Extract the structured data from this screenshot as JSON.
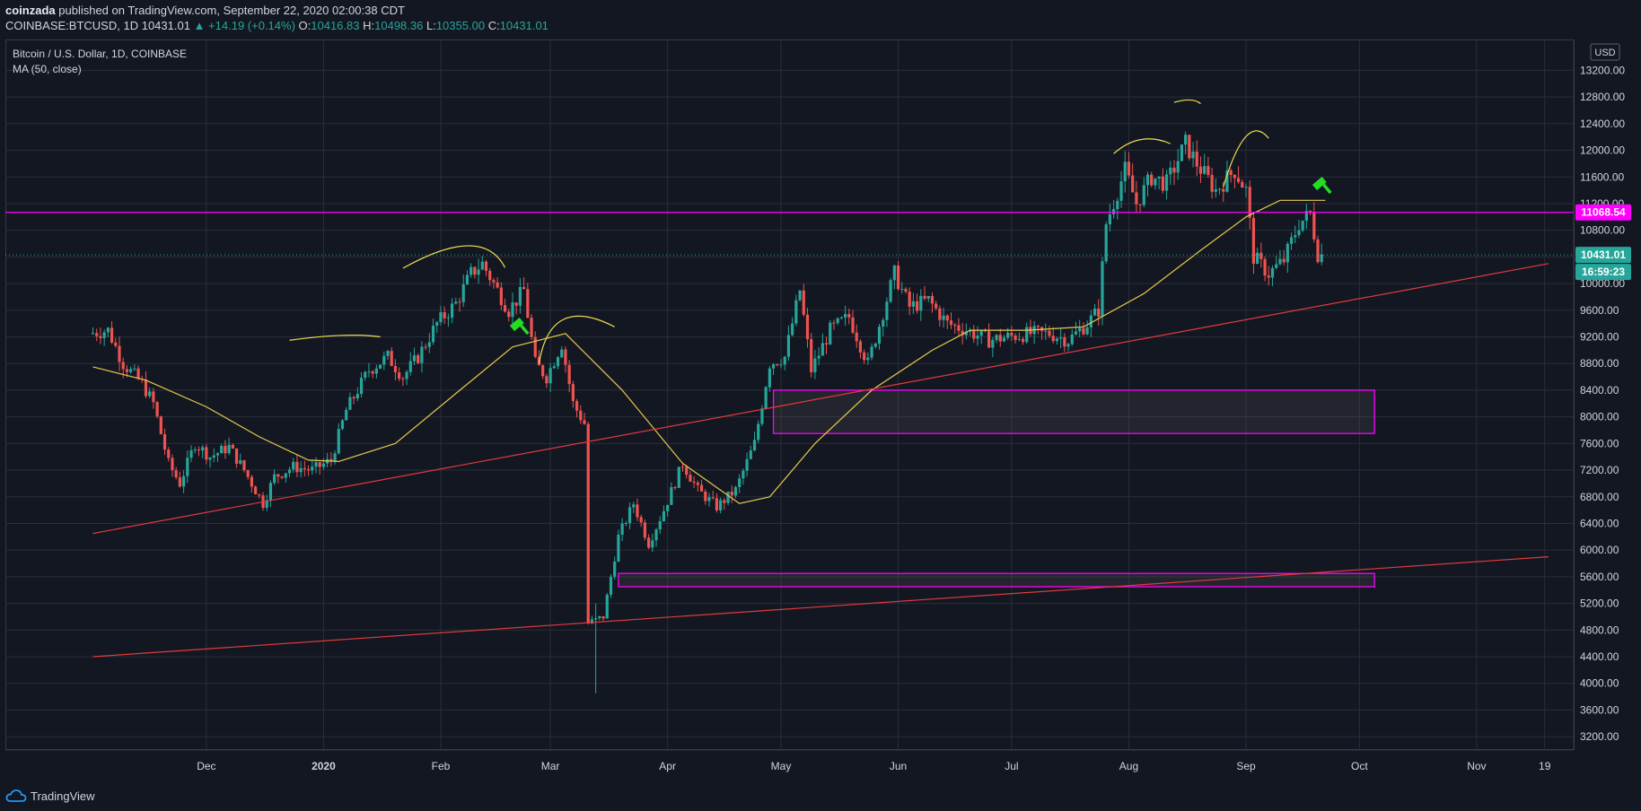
{
  "header": {
    "author": "coinzada",
    "published_text": "published on TradingView.com, September 22, 2020 02:00:38 CDT",
    "symbol": "COINBASE:BTCUSD, 1D",
    "last": "10431.01",
    "change": "▲ +14.19 (+0.14%)",
    "o_label": "O:",
    "o_value": "10416.83",
    "h_label": "H:",
    "h_value": "10498.36",
    "l_label": "L:",
    "l_value": "10355.00",
    "c_label": "C:",
    "c_value": "10431.01"
  },
  "legend": {
    "title": "Bitcoin / U.S. Dollar, 1D, COINBASE",
    "indicator": "MA (50, close)"
  },
  "currency_badge": "USD",
  "footer": {
    "brand": "TradingView"
  },
  "colors": {
    "background": "#131722",
    "grid": "#2a2e39",
    "up": "#26a69a",
    "down": "#ef5350",
    "ma": "#e6c84c",
    "resistance": "#ff00ff",
    "trendline": "#e03b3b",
    "annotation": "#f0e050",
    "marker": "#22dd22"
  },
  "chart_data": {
    "type": "candlestick",
    "symbol": "BTCUSD",
    "timeframe": "1D",
    "y_axis": {
      "ticks": [
        "3200.00",
        "3600.00",
        "4000.00",
        "4400.00",
        "4800.00",
        "5200.00",
        "5600.00",
        "6000.00",
        "6400.00",
        "6800.00",
        "7200.00",
        "7600.00",
        "8000.00",
        "8400.00",
        "8800.00",
        "9200.00",
        "9600.00",
        "10000.00",
        "10400.00",
        "10800.00",
        "11200.00",
        "11600.00",
        "12000.00",
        "12400.00",
        "12800.00",
        "13200.00"
      ],
      "range": [
        3000,
        13650
      ],
      "scale": "linear"
    },
    "x_axis": {
      "tick_labels": [
        "Dec",
        "2020",
        "Feb",
        "Mar",
        "Apr",
        "May",
        "Jun",
        "Jul",
        "Aug",
        "Sep",
        "Oct",
        "Nov",
        "19"
      ]
    },
    "price_labels": {
      "resistance": "11068.54",
      "last": "10431.01",
      "countdown": "16:59:23"
    },
    "resistance_level": 11068.54,
    "last_price": 10431.01,
    "close_series": [
      {
        "date": "2019-11-01",
        "close": 9250
      },
      {
        "date": "2019-11-06",
        "close": 9300
      },
      {
        "date": "2019-11-10",
        "close": 8800
      },
      {
        "date": "2019-11-15",
        "close": 8500
      },
      {
        "date": "2019-11-18",
        "close": 8200
      },
      {
        "date": "2019-11-22",
        "close": 7300
      },
      {
        "date": "2019-11-25",
        "close": 7000
      },
      {
        "date": "2019-11-29",
        "close": 7600
      },
      {
        "date": "2019-12-03",
        "close": 7400
      },
      {
        "date": "2019-12-08",
        "close": 7550
      },
      {
        "date": "2019-12-12",
        "close": 7200
      },
      {
        "date": "2019-12-17",
        "close": 6700
      },
      {
        "date": "2019-12-20",
        "close": 7100
      },
      {
        "date": "2019-12-25",
        "close": 7250
      },
      {
        "date": "2019-12-30",
        "close": 7200
      },
      {
        "date": "2020-01-04",
        "close": 7350
      },
      {
        "date": "2020-01-08",
        "close": 8100
      },
      {
        "date": "2020-01-14",
        "close": 8700
      },
      {
        "date": "2020-01-19",
        "close": 8900
      },
      {
        "date": "2020-01-23",
        "close": 8600
      },
      {
        "date": "2020-01-27",
        "close": 8900
      },
      {
        "date": "2020-02-01",
        "close": 9400
      },
      {
        "date": "2020-02-06",
        "close": 9700
      },
      {
        "date": "2020-02-10",
        "close": 10150
      },
      {
        "date": "2020-02-13",
        "close": 10300
      },
      {
        "date": "2020-02-17",
        "close": 9900
      },
      {
        "date": "2020-02-20",
        "close": 9600
      },
      {
        "date": "2020-02-24",
        "close": 9900
      },
      {
        "date": "2020-02-27",
        "close": 8800
      },
      {
        "date": "2020-03-01",
        "close": 8600
      },
      {
        "date": "2020-03-05",
        "close": 9100
      },
      {
        "date": "2020-03-08",
        "close": 8200
      },
      {
        "date": "2020-03-11",
        "close": 7900
      },
      {
        "date": "2020-03-12",
        "close": 4900
      },
      {
        "date": "2020-03-16",
        "close": 5000
      },
      {
        "date": "2020-03-20",
        "close": 6200
      },
      {
        "date": "2020-03-24",
        "close": 6700
      },
      {
        "date": "2020-03-28",
        "close": 6100
      },
      {
        "date": "2020-04-01",
        "close": 6600
      },
      {
        "date": "2020-04-06",
        "close": 7300
      },
      {
        "date": "2020-04-10",
        "close": 6900
      },
      {
        "date": "2020-04-15",
        "close": 6650
      },
      {
        "date": "2020-04-20",
        "close": 6900
      },
      {
        "date": "2020-04-25",
        "close": 7600
      },
      {
        "date": "2020-04-29",
        "close": 8800
      },
      {
        "date": "2020-05-03",
        "close": 8900
      },
      {
        "date": "2020-05-07",
        "close": 9900
      },
      {
        "date": "2020-05-10",
        "close": 8700
      },
      {
        "date": "2020-05-15",
        "close": 9300
      },
      {
        "date": "2020-05-20",
        "close": 9500
      },
      {
        "date": "2020-05-25",
        "close": 8800
      },
      {
        "date": "2020-06-01",
        "close": 10150
      },
      {
        "date": "2020-06-05",
        "close": 9650
      },
      {
        "date": "2020-06-10",
        "close": 9750
      },
      {
        "date": "2020-06-15",
        "close": 9400
      },
      {
        "date": "2020-06-20",
        "close": 9300
      },
      {
        "date": "2020-06-26",
        "close": 9150
      },
      {
        "date": "2020-07-01",
        "close": 9200
      },
      {
        "date": "2020-07-07",
        "close": 9250
      },
      {
        "date": "2020-07-12",
        "close": 9250
      },
      {
        "date": "2020-07-17",
        "close": 9150
      },
      {
        "date": "2020-07-22",
        "close": 9400
      },
      {
        "date": "2020-07-25",
        "close": 9600
      },
      {
        "date": "2020-07-27",
        "close": 10900
      },
      {
        "date": "2020-08-01",
        "close": 11700
      },
      {
        "date": "2020-08-04",
        "close": 11200
      },
      {
        "date": "2020-08-08",
        "close": 11600
      },
      {
        "date": "2020-08-12",
        "close": 11500
      },
      {
        "date": "2020-08-17",
        "close": 12100
      },
      {
        "date": "2020-08-20",
        "close": 11800
      },
      {
        "date": "2020-08-25",
        "close": 11400
      },
      {
        "date": "2020-08-30",
        "close": 11700
      },
      {
        "date": "2020-09-02",
        "close": 11400
      },
      {
        "date": "2020-09-04",
        "close": 10400
      },
      {
        "date": "2020-09-08",
        "close": 10150
      },
      {
        "date": "2020-09-12",
        "close": 10350
      },
      {
        "date": "2020-09-16",
        "close": 10900
      },
      {
        "date": "2020-09-19",
        "close": 11050
      },
      {
        "date": "2020-09-21",
        "close": 10450
      },
      {
        "date": "2020-09-22",
        "close": 10431
      }
    ],
    "ma50_series": [
      {
        "date": "2019-11-01",
        "value": 8750
      },
      {
        "date": "2019-11-15",
        "value": 8550
      },
      {
        "date": "2019-12-01",
        "value": 8150
      },
      {
        "date": "2019-12-15",
        "value": 7700
      },
      {
        "date": "2019-12-28",
        "value": 7350
      },
      {
        "date": "2020-01-05",
        "value": 7330
      },
      {
        "date": "2020-01-20",
        "value": 7600
      },
      {
        "date": "2020-02-05",
        "value": 8350
      },
      {
        "date": "2020-02-20",
        "value": 9050
      },
      {
        "date": "2020-03-05",
        "value": 9250
      },
      {
        "date": "2020-03-20",
        "value": 8400
      },
      {
        "date": "2020-04-05",
        "value": 7300
      },
      {
        "date": "2020-04-20",
        "value": 6700
      },
      {
        "date": "2020-04-28",
        "value": 6800
      },
      {
        "date": "2020-05-10",
        "value": 7600
      },
      {
        "date": "2020-05-25",
        "value": 8400
      },
      {
        "date": "2020-06-10",
        "value": 9000
      },
      {
        "date": "2020-06-20",
        "value": 9300
      },
      {
        "date": "2020-07-05",
        "value": 9300
      },
      {
        "date": "2020-07-20",
        "value": 9350
      },
      {
        "date": "2020-08-05",
        "value": 9850
      },
      {
        "date": "2020-08-20",
        "value": 10500
      },
      {
        "date": "2020-09-01",
        "value": 11000
      },
      {
        "date": "2020-09-10",
        "value": 11250
      },
      {
        "date": "2020-09-22",
        "value": 11250
      }
    ],
    "trendlines": [
      {
        "from": {
          "date": "2019-11-01",
          "price": 6250
        },
        "to": {
          "date": "2020-11-20",
          "price": 10300
        }
      },
      {
        "from": {
          "date": "2019-11-01",
          "price": 4400
        },
        "to": {
          "date": "2020-11-20",
          "price": 5900
        }
      }
    ],
    "zones": [
      {
        "from_date": "2020-04-29",
        "to_date": "2020-10-05",
        "low": 7750,
        "high": 8400
      },
      {
        "from_date": "2020-03-19",
        "to_date": "2020-10-05",
        "low": 5450,
        "high": 5650
      }
    ]
  }
}
